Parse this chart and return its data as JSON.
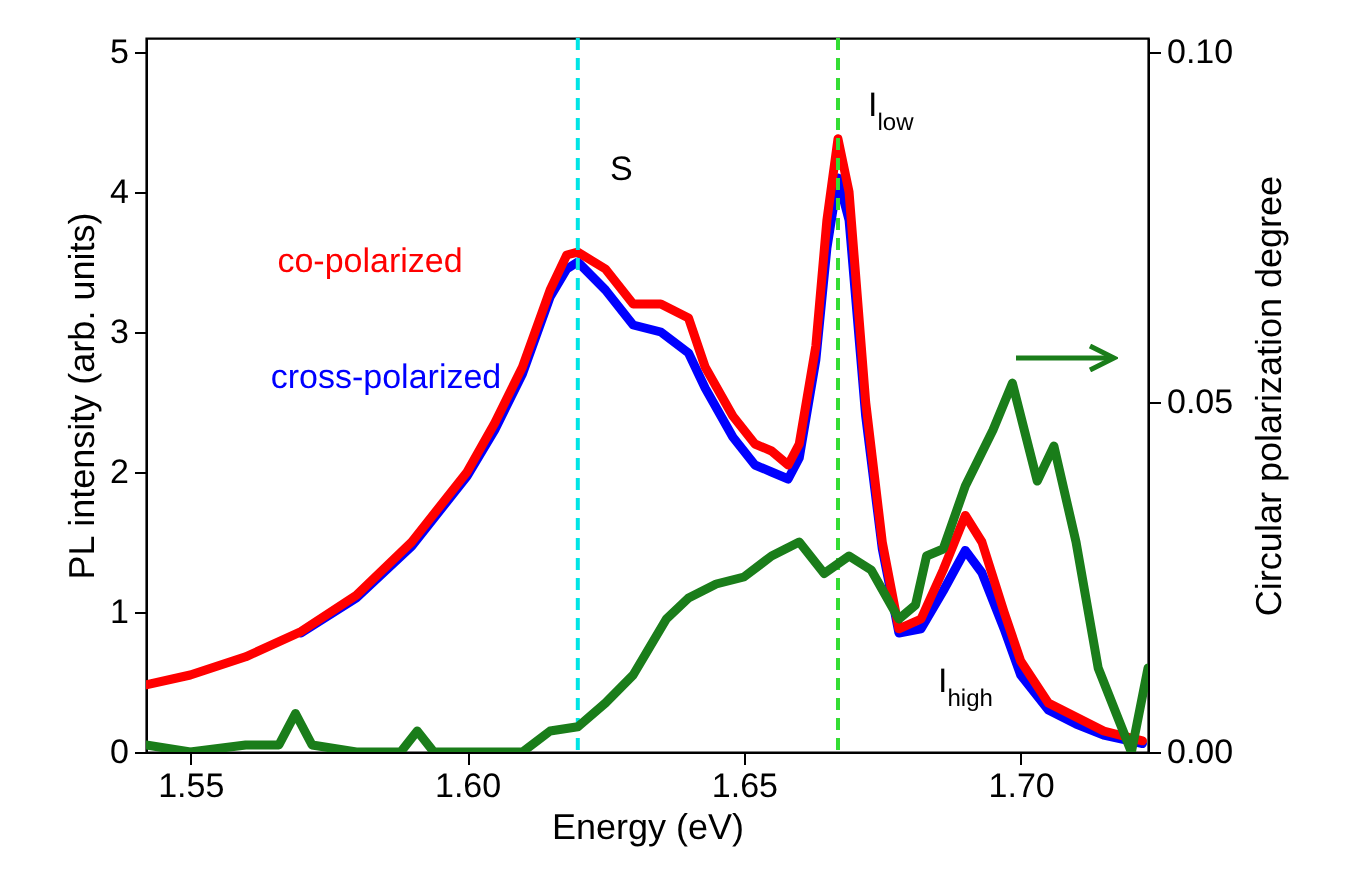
{
  "chart_data": {
    "type": "line",
    "xlabel": "Energy (eV)",
    "ylabel": "PL intensity (arb. units)",
    "y2label": "Circular polarization degree",
    "xlim": [
      1.542,
      1.723
    ],
    "xticks": [
      1.55,
      {
        "value": 1.6,
        "label": "1.60"
      },
      1.65,
      {
        "value": 1.7,
        "label": "1.70"
      }
    ],
    "ylim": [
      0,
      5.1
    ],
    "yticks": [
      0,
      1,
      2,
      3,
      4,
      5
    ],
    "legend": false,
    "y2lim": [
      0,
      0.102
    ],
    "y2ticks": [
      {
        "value": 0,
        "label": "0.00"
      },
      0.05,
      {
        "value": 0.1,
        "label": "0.10"
      }
    ],
    "grid": false,
    "line_style": "solid",
    "marker": "none",
    "series": [
      {
        "name": "cross-polarized",
        "color": "#0000ff",
        "x": [
          1.57,
          1.58,
          1.59,
          1.6,
          1.605,
          1.61,
          1.615,
          1.618,
          1.62,
          1.625,
          1.63,
          1.635,
          1.64,
          1.643,
          1.648,
          1.652,
          1.655,
          1.658,
          1.66,
          1.663,
          1.665,
          1.667,
          1.669,
          1.672,
          1.675,
          1.678,
          1.682,
          1.686,
          1.69,
          1.693,
          1.697,
          1.7,
          1.705,
          1.71,
          1.715,
          1.722
        ],
        "values": [
          0.85,
          1.1,
          1.47,
          1.97,
          2.3,
          2.7,
          3.25,
          3.45,
          3.5,
          3.3,
          3.05,
          3.0,
          2.85,
          2.6,
          2.25,
          2.05,
          2.0,
          1.95,
          2.1,
          2.8,
          3.6,
          4.1,
          3.8,
          2.4,
          1.45,
          0.85,
          0.88,
          1.15,
          1.44,
          1.28,
          0.88,
          0.55,
          0.3,
          0.2,
          0.12,
          0.06
        ]
      },
      {
        "name": "co-polarized",
        "color": "#ff0000",
        "x": [
          1.542,
          1.55,
          1.56,
          1.57,
          1.58,
          1.59,
          1.6,
          1.605,
          1.61,
          1.615,
          1.618,
          1.62,
          1.625,
          1.63,
          1.635,
          1.64,
          1.643,
          1.648,
          1.652,
          1.655,
          1.658,
          1.66,
          1.663,
          1.665,
          1.667,
          1.669,
          1.672,
          1.675,
          1.678,
          1.682,
          1.686,
          1.69,
          1.693,
          1.697,
          1.7,
          1.705,
          1.71,
          1.715,
          1.722
        ],
        "values": [
          0.48,
          0.55,
          0.68,
          0.86,
          1.12,
          1.5,
          2.0,
          2.35,
          2.75,
          3.3,
          3.55,
          3.57,
          3.45,
          3.2,
          3.2,
          3.1,
          2.75,
          2.4,
          2.2,
          2.15,
          2.05,
          2.2,
          2.9,
          3.8,
          4.38,
          4.0,
          2.5,
          1.5,
          0.88,
          0.95,
          1.3,
          1.69,
          1.5,
          1.0,
          0.65,
          0.35,
          0.25,
          0.15,
          0.08
        ]
      },
      {
        "color": "#1a7d1a",
        "axis": "y2",
        "x": [
          1.542,
          1.55,
          1.56,
          1.566,
          1.569,
          1.572,
          1.58,
          1.588,
          1.591,
          1.594,
          1.6,
          1.61,
          1.615,
          1.62,
          1.625,
          1.63,
          1.636,
          1.64,
          1.645,
          1.65,
          1.655,
          1.66,
          1.6645,
          1.669,
          1.673,
          1.678,
          1.681,
          1.683,
          1.686,
          1.69,
          1.695,
          1.6985,
          1.703,
          1.706,
          1.71,
          1.714,
          1.718,
          1.72,
          1.723
        ],
        "values": [
          0.001,
          0.0,
          0.001,
          0.001,
          0.0055,
          0.001,
          0.0,
          0.0,
          0.003,
          0.0,
          0.0,
          0.0,
          0.003,
          0.0036,
          0.007,
          0.011,
          0.019,
          0.022,
          0.024,
          0.025,
          0.028,
          0.03,
          0.0255,
          0.028,
          0.026,
          0.019,
          0.021,
          0.028,
          0.029,
          0.038,
          0.046,
          0.0527,
          0.0387,
          0.0437,
          0.03,
          0.012,
          0.004,
          0.0,
          0.012
        ]
      }
    ],
    "ref_lines": [
      {
        "axis": "x",
        "value": 1.62,
        "color": "#00e5e5",
        "line_style": "dashed"
      },
      {
        "axis": "x",
        "value": 1.667,
        "color": "#33dd33",
        "line_style": "dashed"
      }
    ],
    "annotations": [
      "S",
      "I$_{low}$",
      "I$_{high}$"
    ]
  }
}
